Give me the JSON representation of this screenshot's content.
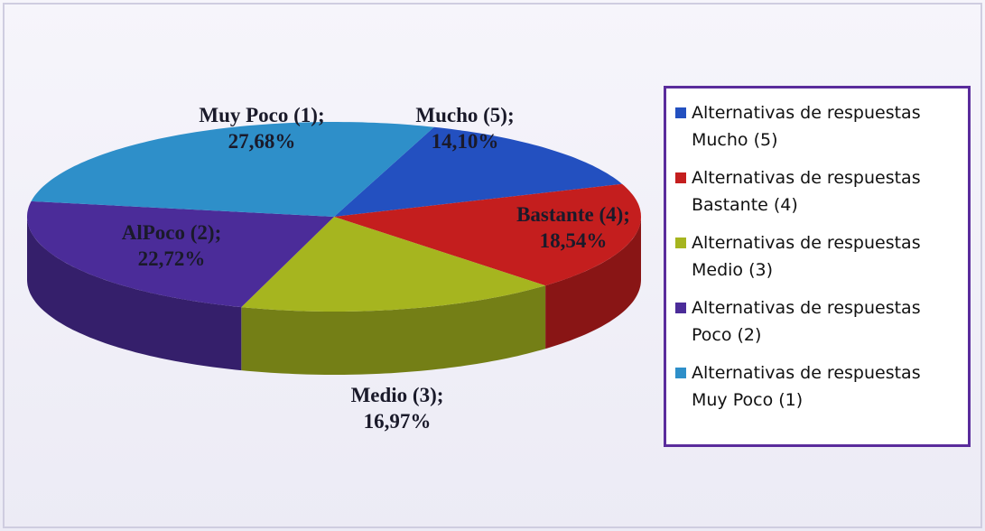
{
  "chart_data": {
    "type": "pie",
    "style": "3d",
    "categories": [
      "Alternativas de respuestas Mucho (5)",
      "Alternativas de respuestas Bastante (4)",
      "Alternativas de respuestas Medio (3)",
      "Alternativas de respuestas Poco (2)",
      "Alternativas de respuestas Muy Poco (1)"
    ],
    "values": [
      14.1,
      18.54,
      16.97,
      22.72,
      27.68
    ],
    "value_labels": [
      "14,10%",
      "18,54%",
      "16,97%",
      "22,72%",
      "27,68%"
    ],
    "slice_labels": [
      "Mucho (5);",
      "Bastante (4);",
      "Medio (3);",
      "AlPoco (2);",
      "Muy Poco (1);"
    ],
    "colors": [
      "#2350c0",
      "#c41e1e",
      "#a6b51f",
      "#4b2c99",
      "#2e8fc9"
    ],
    "legend": "right"
  }
}
